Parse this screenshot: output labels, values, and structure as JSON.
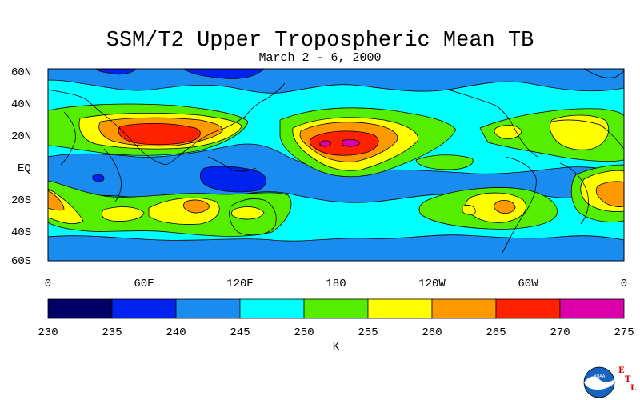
{
  "title": "SSM/T2 Upper Tropospheric Mean TB",
  "subtitle": "March 2 – 6, 2000",
  "map": {
    "lat_labels": [
      "60N",
      "40N",
      "20N",
      "EQ",
      "20S",
      "40S",
      "60S"
    ],
    "lon_labels": [
      "0",
      "60E",
      "120E",
      "180",
      "120W",
      "60W",
      "0"
    ]
  },
  "colorbar": {
    "ticks": [
      "230",
      "235",
      "240",
      "245",
      "250",
      "255",
      "260",
      "265",
      "270",
      "275"
    ],
    "colors": [
      "#000066",
      "#0022ee",
      "#1a8cf0",
      "#00ffff",
      "#55ee00",
      "#ffff00",
      "#ff9900",
      "#ff2200",
      "#dd00aa"
    ],
    "unit": "K"
  },
  "logo": {
    "letters": [
      "E",
      "T",
      "L"
    ],
    "badge_text": "NOAA"
  }
}
